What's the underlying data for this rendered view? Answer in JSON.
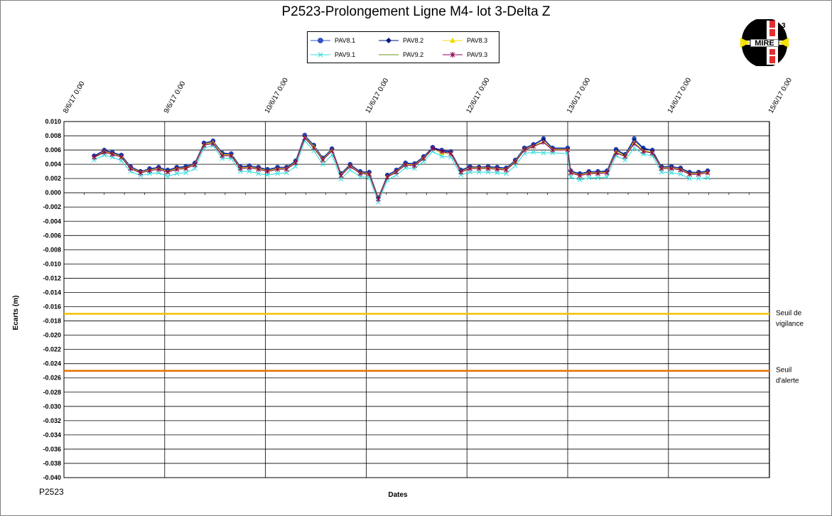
{
  "chart_data": {
    "type": "line",
    "title": "P2523-Prolongement  Ligne  M4- lot 3-Delta Z",
    "xlabel": "Dates",
    "ylabel": "Ecarts (m)",
    "ylim": [
      -0.04,
      0.01
    ],
    "ytick_step": 0.002,
    "x_start": "8/6/17 0:00",
    "x_end": "15/6/17 0:00",
    "x_tick_labels": [
      "8/6/17 0:00",
      "9/6/17 0:00",
      "10/6/17 0:00",
      "11/6/17 0:00",
      "12/6/17 0:00",
      "13/6/17 0:00",
      "14/6/17 0:00",
      "15/6/17 0:00"
    ],
    "grid": true,
    "legend_position": "top-center",
    "x_times": [
      0.3,
      0.4,
      0.48,
      0.57,
      0.66,
      0.76,
      0.85,
      0.94,
      1.03,
      1.12,
      1.21,
      1.3,
      1.39,
      1.48,
      1.57,
      1.66,
      1.75,
      1.84,
      1.93,
      2.02,
      2.12,
      2.21,
      2.3,
      2.39,
      2.48,
      2.57,
      2.66,
      2.75,
      2.84,
      2.94,
      3.03,
      3.12,
      3.21,
      3.3,
      3.39,
      3.48,
      3.57,
      3.66,
      3.75,
      3.84,
      3.94,
      4.03,
      4.12,
      4.21,
      4.3,
      4.39,
      4.48,
      4.57,
      4.66,
      4.76,
      4.85,
      5.0,
      5.03,
      5.12,
      5.21,
      5.3,
      5.39,
      5.48,
      5.57,
      5.66,
      5.75,
      5.84,
      5.93,
      6.03,
      6.12,
      6.21,
      6.3,
      6.39,
      6.48,
      6.57,
      6.66,
      6.76,
      6.85,
      6.94,
      7.03,
      7.12,
      7.21,
      7.3,
      7.39,
      7.48,
      7.57
    ],
    "series": [
      {
        "name": "PAV8.1",
        "color": "#3355cc",
        "marker": "circle",
        "values": [
          0.0052,
          0.006,
          0.0057,
          0.0053,
          0.0037,
          0.003,
          0.0034,
          0.0036,
          0.0032,
          0.0036,
          0.0037,
          0.0042,
          0.007,
          0.0073,
          0.0056,
          0.0055,
          0.0037,
          0.0038,
          0.0036,
          0.0033,
          0.0036,
          0.0036,
          0.0045,
          0.0081,
          0.0067,
          0.0049,
          0.0062,
          0.0027,
          0.004,
          0.003,
          0.0029,
          -0.0007,
          0.0025,
          0.0032,
          0.0042,
          0.0041,
          0.0051,
          0.0064,
          0.006,
          0.0058,
          0.0032,
          0.0037,
          0.0036,
          0.0037,
          0.0036,
          0.0035,
          0.0046,
          0.0063,
          0.0068,
          0.0076,
          0.0063,
          0.0063,
          0.0031,
          0.0027,
          0.003,
          0.003,
          0.0031,
          0.0061,
          0.0054,
          0.0076,
          0.0063,
          0.006,
          0.0037,
          0.0037,
          0.0035,
          0.0029,
          0.0029,
          0.0031,
          0.0036,
          0.0044,
          0.0044,
          0.0044,
          0.0044,
          0.0044,
          0.0044,
          0.0044,
          0.0044,
          0.0044,
          0.0044,
          0.0044,
          0.0044
        ]
      },
      {
        "name": "PAV8.2",
        "color": "#001a80",
        "marker": "diamond",
        "values": [
          0.0051,
          0.0059,
          0.0056,
          0.0052,
          0.0036,
          0.003,
          0.0033,
          0.0035,
          0.0031,
          0.0035,
          0.0036,
          0.0041,
          0.0069,
          0.0072,
          0.0055,
          0.0054,
          0.0036,
          0.0037,
          0.0035,
          0.0032,
          0.0035,
          0.0035,
          0.0044,
          0.0079,
          0.0066,
          0.0048,
          0.0061,
          0.0026,
          0.0039,
          0.0029,
          0.0028,
          -0.0007,
          0.0024,
          0.0031,
          0.0041,
          0.004,
          0.005,
          0.0063,
          0.0059,
          0.0057,
          0.0031,
          0.0036,
          0.0036,
          0.0036,
          0.0035,
          0.0034,
          0.0045,
          0.0062,
          0.0067,
          0.0075,
          0.0062,
          0.0062,
          0.003,
          0.0026,
          0.0029,
          0.0029,
          0.003,
          0.006,
          0.0053,
          0.0074,
          0.0062,
          0.0059,
          0.0036,
          0.0036,
          0.0034,
          0.0028,
          0.0028,
          0.003,
          0.0035,
          0.004,
          0.004,
          0.004,
          0.004,
          0.004,
          0.004,
          0.004,
          0.004,
          0.004,
          0.004,
          0.004,
          0.004
        ]
      },
      {
        "name": "PAV8.3",
        "color": "#f0d800",
        "marker": "triangle",
        "values": [
          0.005,
          0.0058,
          0.0055,
          0.0051,
          0.0035,
          0.0029,
          0.0032,
          0.0034,
          0.003,
          0.0034,
          0.0035,
          0.004,
          0.0068,
          0.0071,
          0.0054,
          0.0053,
          0.0035,
          0.0036,
          0.0034,
          0.0031,
          0.0034,
          0.0034,
          0.0043,
          0.0078,
          0.0065,
          0.0047,
          0.006,
          0.0025,
          0.0038,
          0.0028,
          0.0027,
          -0.0008,
          0.0023,
          0.003,
          0.004,
          0.0039,
          0.0049,
          0.0062,
          0.0055,
          0.0056,
          0.003,
          0.0035,
          0.0035,
          0.0035,
          0.0034,
          0.0033,
          0.0044,
          0.0061,
          0.0066,
          0.0072,
          0.0061,
          0.0061,
          0.0029,
          0.0025,
          0.0028,
          0.0028,
          0.0029,
          0.0058,
          0.0052,
          0.0071,
          0.0059,
          0.0057,
          0.0035,
          0.0035,
          0.0033,
          0.0027,
          0.0027,
          0.0029,
          0.0034,
          0.0039,
          0.0039,
          0.0039,
          0.0039,
          0.0039,
          0.0039,
          0.0039,
          0.0039,
          0.0039,
          0.0039,
          0.0039,
          0.0039
        ]
      },
      {
        "name": "PAV9.1",
        "color": "#33dddd",
        "marker": "x",
        "values": [
          0.0046,
          0.0053,
          0.005,
          0.0045,
          0.003,
          0.0024,
          0.0027,
          0.0028,
          0.0023,
          0.0027,
          0.0028,
          0.0034,
          0.0063,
          0.0066,
          0.0048,
          0.0048,
          0.003,
          0.003,
          0.0027,
          0.0025,
          0.0027,
          0.0028,
          0.0037,
          0.0073,
          0.0059,
          0.004,
          0.0053,
          0.0019,
          0.0032,
          0.0023,
          0.0021,
          -0.0013,
          0.0018,
          0.0025,
          0.0035,
          0.0034,
          0.0044,
          0.0058,
          0.0051,
          0.005,
          0.0025,
          0.0029,
          0.0029,
          0.0029,
          0.0028,
          0.0027,
          0.0038,
          0.0055,
          0.0057,
          0.0056,
          0.0056,
          0.0055,
          0.0022,
          0.0018,
          0.0021,
          0.0021,
          0.0022,
          0.0052,
          0.0046,
          0.0063,
          0.0054,
          0.0052,
          0.0029,
          0.0028,
          0.0026,
          0.002,
          0.002,
          0.0021,
          0.0026,
          0.0032,
          0.0032,
          0.0032,
          0.0032,
          0.0032,
          0.0032,
          0.0032,
          0.0032,
          0.0032,
          0.0032,
          0.0032,
          0.0032
        ]
      },
      {
        "name": "PAV9.2",
        "color": "#99bb66",
        "marker": "none",
        "values": [
          0.0049,
          0.0057,
          0.0054,
          0.005,
          0.0034,
          0.0028,
          0.0031,
          0.0033,
          0.0029,
          0.0033,
          0.0034,
          0.0039,
          0.0067,
          0.007,
          0.0053,
          0.0052,
          0.0034,
          0.0035,
          0.0033,
          0.003,
          0.0033,
          0.0033,
          0.0042,
          0.0077,
          0.0064,
          0.0046,
          0.0059,
          0.0024,
          0.0037,
          0.0027,
          0.0026,
          -0.0009,
          0.0022,
          0.0029,
          0.0039,
          0.0038,
          0.0048,
          0.0061,
          0.0057,
          0.0055,
          0.0029,
          0.0034,
          0.0034,
          0.0034,
          0.0033,
          0.0032,
          0.0043,
          0.006,
          0.0065,
          0.0071,
          0.006,
          0.006,
          0.0028,
          0.0024,
          0.0027,
          0.0027,
          0.0028,
          0.0057,
          0.0051,
          0.007,
          0.0058,
          0.0056,
          0.0034,
          0.0034,
          0.0032,
          0.0026,
          0.0026,
          0.0028,
          0.0033,
          0.0038,
          0.0038,
          0.0038,
          0.0038,
          0.0038,
          0.0038,
          0.0038,
          0.0038,
          0.0038,
          0.0038,
          0.0038,
          0.0038
        ]
      },
      {
        "name": "PAV9.3",
        "color": "#880055",
        "marker": "star",
        "values": [
          0.005,
          0.0057,
          0.0054,
          0.005,
          0.0034,
          0.0028,
          0.0031,
          0.0033,
          0.0029,
          0.0033,
          0.0034,
          0.0039,
          0.0067,
          0.0069,
          0.0052,
          0.0052,
          0.0034,
          0.0035,
          0.0033,
          0.003,
          0.0033,
          0.0033,
          0.0042,
          0.0077,
          0.0063,
          0.0046,
          0.0059,
          0.0024,
          0.0037,
          0.0027,
          0.0026,
          -0.0009,
          0.0022,
          0.0029,
          0.0039,
          0.0038,
          0.0048,
          0.0062,
          0.0058,
          0.0055,
          0.0029,
          0.0034,
          0.0034,
          0.0034,
          0.0033,
          0.0032,
          0.0043,
          0.006,
          0.0065,
          0.0071,
          0.006,
          0.006,
          0.0028,
          0.0024,
          0.0027,
          0.0027,
          0.0028,
          0.0056,
          0.0051,
          0.0069,
          0.0058,
          0.0056,
          0.0034,
          0.0034,
          0.0032,
          0.0026,
          0.0026,
          0.0028,
          0.0033,
          0.0038,
          0.0038,
          0.0038,
          0.0038,
          0.0038,
          0.0038,
          0.0038,
          0.0038,
          0.0038,
          0.0038,
          0.0038,
          0.0038
        ]
      }
    ],
    "thresholds": [
      {
        "label_1": "Seuil de",
        "label_2": "vigilance",
        "value": -0.017,
        "color": "#f0c000"
      },
      {
        "label_1": "Seuil",
        "label_2": "d'alerte",
        "value": -0.025,
        "color": "#e87000"
      }
    ]
  },
  "footer": {
    "code": "P2523"
  },
  "logo": {
    "text": "MIRE",
    "digits": [
      "3",
      "2"
    ]
  }
}
